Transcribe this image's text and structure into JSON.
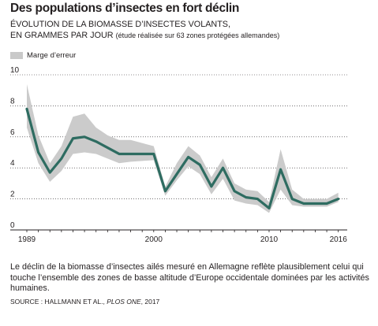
{
  "chart_data": {
    "type": "line",
    "title": "Des populations d’insectes en fort déclin",
    "subtitle": "ÉVOLUTION DE LA BIOMASSE D’INSECTES VOLANTS, EN GRAMMES PAR JOUR",
    "subtitle_line1": "ÉVOLUTION DE LA BIOMASSE D’INSECTES VOLANTS,",
    "subtitle_line2": "EN GRAMMES PAR JOUR",
    "subtitle_note": "(étude réalisée sur 63 zones protégées allemandes)",
    "legend": [
      "Marge d’erreur"
    ],
    "ylim": [
      0,
      10
    ],
    "xlim": [
      1989,
      2016.5
    ],
    "y_ticks": [
      "0",
      "2",
      "4",
      "6",
      "8",
      "10"
    ],
    "x_ticks": [
      "1989",
      "2000",
      "2010",
      "2016"
    ],
    "grid": "horizontal",
    "series": [
      {
        "x": [
          1989,
          1990,
          1991,
          1992,
          1993,
          1994,
          1995,
          1996,
          1997,
          1998,
          2000,
          2001,
          2002,
          2003,
          2004,
          2005,
          2006,
          2007,
          2008,
          2009,
          2010,
          2011,
          2012,
          2013,
          2014,
          2015,
          2016
        ],
        "y": [
          7.8,
          5.0,
          3.7,
          4.6,
          5.9,
          6.0,
          5.7,
          5.3,
          4.9,
          4.9,
          4.9,
          2.5,
          3.6,
          4.7,
          4.2,
          2.8,
          4.0,
          2.5,
          2.1,
          2.0,
          1.4,
          3.9,
          2.0,
          1.7,
          1.7,
          1.7,
          2.0
        ],
        "y_low": [
          6.6,
          4.3,
          3.1,
          3.8,
          4.9,
          5.0,
          4.9,
          4.6,
          4.3,
          4.4,
          4.5,
          2.2,
          3.2,
          4.1,
          3.6,
          2.3,
          3.3,
          1.9,
          1.7,
          1.6,
          1.1,
          2.6,
          1.6,
          1.5,
          1.5,
          1.5,
          1.8
        ],
        "y_high": [
          9.4,
          6.1,
          4.3,
          5.4,
          7.3,
          7.5,
          6.6,
          6.1,
          5.8,
          5.8,
          5.4,
          2.8,
          4.3,
          5.4,
          4.8,
          3.4,
          4.6,
          3.0,
          2.6,
          2.5,
          1.8,
          5.2,
          2.6,
          2.0,
          2.0,
          2.0,
          2.4
        ]
      }
    ],
    "colors": {
      "line": "#2e6c61",
      "band": "#cbcbcb",
      "grid": "#231f20"
    }
  },
  "caption": "Le déclin de la biomasse d’insectes ailés mesuré en Allemagne reflète plausiblement celui qui touche l’ensemble des zones de basse altitude d’Europe occidentale dominées par les activités humaines.",
  "source_prefix": "SOURCE : HALLMANN ET AL., ",
  "source_journal": "PLOS ONE",
  "source_suffix": ", 2017"
}
